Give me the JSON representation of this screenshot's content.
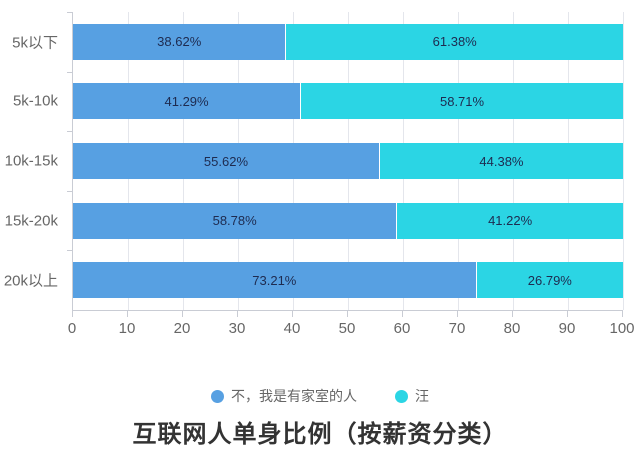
{
  "chart_data": {
    "type": "bar",
    "orientation": "horizontal",
    "stacked": true,
    "title": "互联网人单身比例（按薪资分类）",
    "categories": [
      "5k以下",
      "5k-10k",
      "10k-15k",
      "15k-20k",
      "20k以上"
    ],
    "series": [
      {
        "name": "不，我是有家室的人",
        "color": "#57a0e2",
        "values": [
          38.62,
          41.29,
          55.62,
          58.78,
          73.21
        ]
      },
      {
        "name": "汪",
        "color": "#2bd5e4",
        "values": [
          61.38,
          58.71,
          44.38,
          41.22,
          26.79
        ]
      }
    ],
    "xlim": [
      0,
      100
    ],
    "x_ticks": [
      0,
      10,
      20,
      30,
      40,
      50,
      60,
      70,
      80,
      90,
      100
    ],
    "grid": true,
    "legend_position": "bottom",
    "value_label_suffix": "%"
  },
  "colors": {
    "background": "#ffffff",
    "axis": "#c9ccd4",
    "gridline": "#e4e6ec",
    "bar_label": "#1e2b50",
    "axis_label": "#666666",
    "legend_text": "#666666",
    "title_text": "#333333"
  }
}
